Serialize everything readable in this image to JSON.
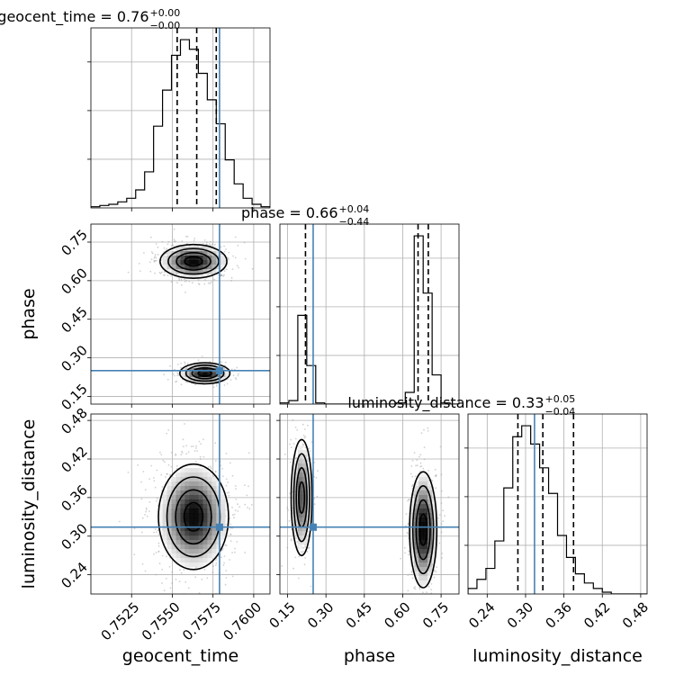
{
  "chart_data": {
    "type": "corner",
    "parameters": [
      {
        "name": "geocent_time",
        "label": "geocent_time",
        "range": [
          0.75,
          0.761
        ],
        "ticks": [
          0.7525,
          0.755,
          0.7575,
          0.76
        ],
        "tick_labels": [
          "0.7525",
          "0.7550",
          "0.7575",
          "0.7600"
        ],
        "truth": 0.7579,
        "quantiles": [
          0.7553,
          0.7565,
          0.7577
        ],
        "title": {
          "prefix": "geocent_time = ",
          "value": "0.76",
          "plus": "+0.00",
          "minus": "−0.00"
        },
        "hist": {
          "edges_start": 0.75,
          "bin_width": 0.00055,
          "counts": [
            1,
            2,
            3,
            5,
            8,
            15,
            30,
            68,
            98,
            127,
            140,
            132,
            112,
            90,
            70,
            40,
            20,
            8,
            3,
            1
          ]
        }
      },
      {
        "name": "phase",
        "label": "phase",
        "range": [
          0.12,
          0.82
        ],
        "ticks": [
          0.15,
          0.3,
          0.45,
          0.6,
          0.75
        ],
        "tick_labels": [
          "0.15",
          "0.30",
          "0.45",
          "0.60",
          "0.75"
        ],
        "truth": 0.25,
        "quantiles": [
          0.22,
          0.66,
          0.7
        ],
        "title": {
          "prefix": "phase = ",
          "value": "0.66",
          "plus": "+0.04",
          "minus": "−0.44"
        },
        "hist": {
          "edges_start": 0.12,
          "bin_width": 0.035,
          "counts": [
            1,
            3,
            76,
            33,
            1,
            0,
            0,
            0,
            0,
            0,
            0,
            0,
            0,
            1,
            10,
            144,
            95,
            25,
            1,
            0
          ]
        }
      },
      {
        "name": "luminosity_distance",
        "label": "luminosity_distance",
        "range": [
          0.21,
          0.49
        ],
        "ticks": [
          0.24,
          0.3,
          0.36,
          0.42,
          0.48
        ],
        "tick_labels": [
          "0.24",
          "0.30",
          "0.36",
          "0.42",
          "0.48"
        ],
        "truth": 0.314,
        "quantiles": [
          0.288,
          0.327,
          0.375
        ],
        "title": {
          "prefix": "luminosity_distance = ",
          "value": "0.33",
          "plus": "+0.05",
          "minus": "−0.04"
        },
        "hist": {
          "edges_start": 0.21,
          "bin_width": 0.014,
          "counts": [
            3,
            8,
            14,
            29,
            58,
            86,
            92,
            82,
            69,
            55,
            32,
            20,
            11,
            6,
            3,
            1,
            0,
            0,
            0,
            0
          ]
        }
      }
    ],
    "pairs": [
      {
        "x": "geocent_time",
        "y": "phase",
        "blobs": [
          {
            "cx": 0.7563,
            "cy": 0.675,
            "sx": 0.001,
            "sy": 0.032,
            "weight": 0.68
          },
          {
            "cx": 0.757,
            "cy": 0.24,
            "sx": 0.00075,
            "sy": 0.02,
            "weight": 0.32
          }
        ]
      },
      {
        "x": "geocent_time",
        "y": "luminosity_distance",
        "blobs": [
          {
            "cx": 0.7563,
            "cy": 0.33,
            "sx": 0.00105,
            "sy": 0.04,
            "weight": 1.0
          }
        ]
      },
      {
        "x": "phase",
        "y": "luminosity_distance",
        "blobs": [
          {
            "cx": 0.205,
            "cy": 0.36,
            "sx": 0.02,
            "sy": 0.044,
            "weight": 0.35
          },
          {
            "cx": 0.68,
            "cy": 0.31,
            "sx": 0.026,
            "sy": 0.044,
            "weight": 0.65
          }
        ]
      }
    ],
    "truth_color": "#4682b4",
    "grid": true,
    "legend": "none"
  }
}
